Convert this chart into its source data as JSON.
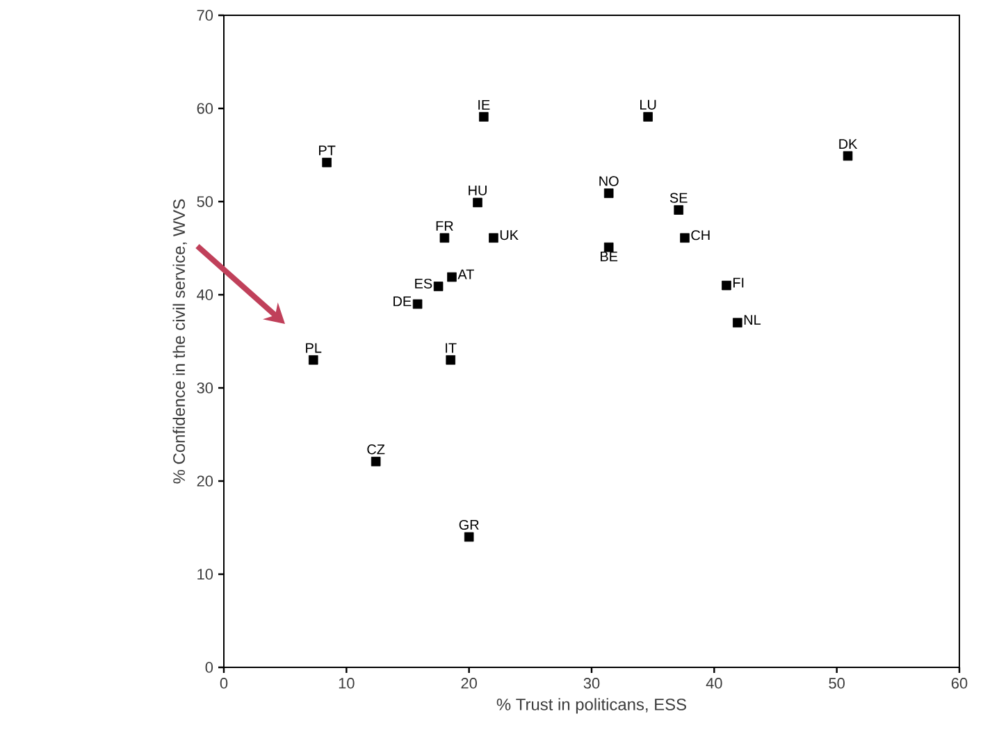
{
  "chart_data": {
    "type": "scatter",
    "xlabel": "% Trust in politicans, ESS",
    "ylabel": "% Confidence in the civil service, WVS",
    "xlim": [
      0,
      60
    ],
    "ylim": [
      0,
      70
    ],
    "xticks": [
      0,
      10,
      20,
      30,
      40,
      50,
      60
    ],
    "yticks": [
      0,
      10,
      20,
      30,
      40,
      50,
      60,
      70
    ],
    "marker": "square",
    "color": "#000000",
    "x": [
      21.2,
      8.4,
      20.7,
      18.0,
      22.0,
      18.6,
      17.5,
      15.8,
      7.3,
      18.5,
      12.4,
      20.0,
      34.6,
      50.9,
      31.4,
      37.1,
      37.6,
      31.4,
      41.0,
      41.9
    ],
    "values": [
      59.1,
      54.2,
      49.9,
      46.1,
      46.1,
      41.9,
      40.9,
      39.0,
      33.0,
      33.0,
      22.1,
      14.0,
      59.1,
      54.9,
      50.9,
      49.1,
      46.1,
      45.1,
      41.0,
      37.0
    ],
    "annotations": [
      {
        "text": "IE",
        "x": 21.2,
        "y": 59.1
      },
      {
        "text": "PT",
        "x": 8.4,
        "y": 54.2
      },
      {
        "text": "HU",
        "x": 20.7,
        "y": 49.9
      },
      {
        "text": "FR",
        "x": 18.0,
        "y": 46.1
      },
      {
        "text": "UK",
        "x": 22.0,
        "y": 46.1
      },
      {
        "text": "AT",
        "x": 18.6,
        "y": 41.9
      },
      {
        "text": "ES",
        "x": 17.5,
        "y": 40.9
      },
      {
        "text": "DE",
        "x": 15.8,
        "y": 39.0
      },
      {
        "text": "PL",
        "x": 7.3,
        "y": 33.0
      },
      {
        "text": "IT",
        "x": 18.5,
        "y": 33.0
      },
      {
        "text": "CZ",
        "x": 12.4,
        "y": 22.1
      },
      {
        "text": "GR",
        "x": 20.0,
        "y": 14.0
      },
      {
        "text": "LU",
        "x": 34.6,
        "y": 59.1
      },
      {
        "text": "DK",
        "x": 50.9,
        "y": 54.9
      },
      {
        "text": "NO",
        "x": 31.4,
        "y": 50.9
      },
      {
        "text": "SE",
        "x": 37.1,
        "y": 49.1
      },
      {
        "text": "CH",
        "x": 37.6,
        "y": 46.1
      },
      {
        "text": "BE",
        "x": 31.4,
        "y": 45.1
      },
      {
        "text": "FI",
        "x": 41.0,
        "y": 41.0
      },
      {
        "text": "NL",
        "x": 41.9,
        "y": 37.0
      }
    ]
  }
}
